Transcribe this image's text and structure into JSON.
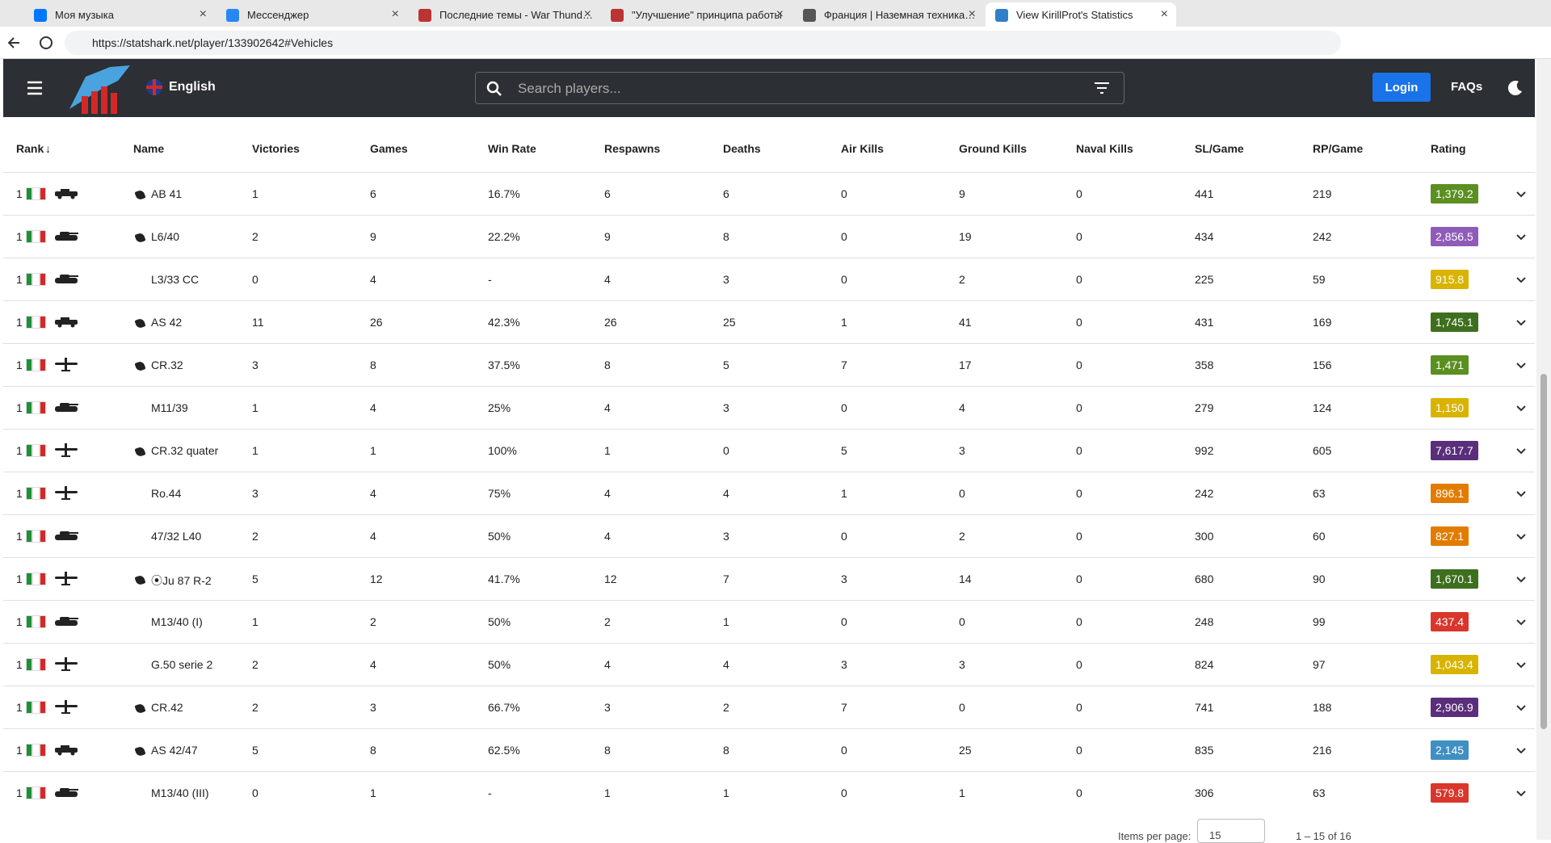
{
  "browser": {
    "tabs": [
      "Моя музыка",
      "Мессенджер",
      "Последние темы - War Thunder -",
      "\"Улучшение\" принципа работы",
      "Франция | Наземная техника | W",
      "View KirillProt's Statistics"
    ],
    "url": "https://statshark.net/player/133902642#Vehicles"
  },
  "header": {
    "language": "English",
    "search_placeholder": "Search players...",
    "login": "Login",
    "faqs": "FAQs"
  },
  "table": {
    "columns": [
      "Rank",
      "Name",
      "Victories",
      "Games",
      "Win Rate",
      "Respawns",
      "Deaths",
      "Air Kills",
      "Ground Kills",
      "Naval Kills",
      "SL/Game",
      "RP/Game",
      "Rating"
    ],
    "rows": [
      {
        "rank": "1",
        "icon": "car",
        "premium": true,
        "name": "AB 41",
        "stats": [
          "1",
          "6",
          "16.7%",
          "6",
          "6",
          "0",
          "9",
          "0",
          "441",
          "219"
        ],
        "rating": "1,379.2",
        "rating_color": "#5b8f22"
      },
      {
        "rank": "1",
        "icon": "tank",
        "premium": true,
        "name": "L6/40",
        "stats": [
          "2",
          "9",
          "22.2%",
          "9",
          "8",
          "0",
          "19",
          "0",
          "434",
          "242"
        ],
        "rating": "2,856.5",
        "rating_color": "#8f5bb8"
      },
      {
        "rank": "1",
        "icon": "tank",
        "premium": false,
        "name": "L3/33 CC",
        "stats": [
          "0",
          "4",
          "-",
          "4",
          "3",
          "0",
          "2",
          "0",
          "225",
          "59"
        ],
        "rating": "915.8",
        "rating_color": "#d8b400"
      },
      {
        "rank": "1",
        "icon": "car",
        "premium": true,
        "name": "AS 42",
        "stats": [
          "11",
          "26",
          "42.3%",
          "26",
          "25",
          "1",
          "41",
          "0",
          "431",
          "169"
        ],
        "rating": "1,745.1",
        "rating_color": "#3e6f1f"
      },
      {
        "rank": "1",
        "icon": "plane",
        "premium": true,
        "name": "CR.32",
        "stats": [
          "3",
          "8",
          "37.5%",
          "8",
          "5",
          "7",
          "17",
          "0",
          "358",
          "156"
        ],
        "rating": "1,471",
        "rating_color": "#5b8f22"
      },
      {
        "rank": "1",
        "icon": "tank",
        "premium": false,
        "name": "M11/39",
        "stats": [
          "1",
          "4",
          "25%",
          "4",
          "3",
          "0",
          "4",
          "0",
          "279",
          "124"
        ],
        "rating": "1,150",
        "rating_color": "#d8b400"
      },
      {
        "rank": "1",
        "icon": "plane",
        "premium": true,
        "name": "CR.32 quater",
        "stats": [
          "1",
          "1",
          "100%",
          "1",
          "0",
          "5",
          "3",
          "0",
          "992",
          "605"
        ],
        "rating": "7,617.7",
        "rating_color": "#5a2e7b"
      },
      {
        "rank": "1",
        "icon": "plane",
        "premium": false,
        "name": "Ro.44",
        "stats": [
          "3",
          "4",
          "75%",
          "4",
          "4",
          "1",
          "0",
          "0",
          "242",
          "63"
        ],
        "rating": "896.1",
        "rating_color": "#e27c00"
      },
      {
        "rank": "1",
        "icon": "tank",
        "premium": false,
        "name": "47/32 L40",
        "stats": [
          "2",
          "4",
          "50%",
          "4",
          "3",
          "0",
          "2",
          "0",
          "300",
          "60"
        ],
        "rating": "827.1",
        "rating_color": "#e27c00"
      },
      {
        "rank": "1",
        "icon": "plane",
        "premium": true,
        "name": "⦿Ju 87 R-2",
        "stats": [
          "5",
          "12",
          "41.7%",
          "12",
          "7",
          "3",
          "14",
          "0",
          "680",
          "90"
        ],
        "rating": "1,670.1",
        "rating_color": "#3e6f1f"
      },
      {
        "rank": "1",
        "icon": "tank",
        "premium": false,
        "name": "M13/40 (I)",
        "stats": [
          "1",
          "2",
          "50%",
          "2",
          "1",
          "0",
          "0",
          "0",
          "248",
          "99"
        ],
        "rating": "437.4",
        "rating_color": "#d9362c"
      },
      {
        "rank": "1",
        "icon": "plane",
        "premium": false,
        "name": "G.50 serie 2",
        "stats": [
          "2",
          "4",
          "50%",
          "4",
          "4",
          "3",
          "3",
          "0",
          "824",
          "97"
        ],
        "rating": "1,043.4",
        "rating_color": "#d8b400"
      },
      {
        "rank": "1",
        "icon": "plane",
        "premium": true,
        "name": "CR.42",
        "stats": [
          "2",
          "3",
          "66.7%",
          "3",
          "2",
          "7",
          "0",
          "0",
          "741",
          "188"
        ],
        "rating": "2,906.9",
        "rating_color": "#5a2e7b"
      },
      {
        "rank": "1",
        "icon": "car",
        "premium": true,
        "name": "AS 42/47",
        "stats": [
          "5",
          "8",
          "62.5%",
          "8",
          "8",
          "0",
          "25",
          "0",
          "835",
          "216"
        ],
        "rating": "2,145",
        "rating_color": "#3f8fc2"
      },
      {
        "rank": "1",
        "icon": "tank",
        "premium": false,
        "name": "M13/40 (III)",
        "stats": [
          "0",
          "1",
          "-",
          "1",
          "1",
          "0",
          "1",
          "0",
          "306",
          "63"
        ],
        "rating": "579.8",
        "rating_color": "#d9362c"
      }
    ]
  },
  "pagination": {
    "items_per_page_label": "Items per page:",
    "items_per_page": "15",
    "range": "1 – 15 of 16"
  }
}
